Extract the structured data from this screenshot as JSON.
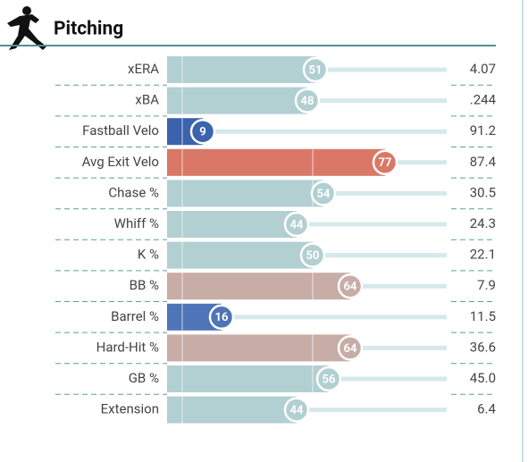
{
  "chart_data": {
    "type": "percentile-bar",
    "title": "Pitching",
    "categories": [
      "xERA",
      "xBA",
      "Fastball Velo",
      "Avg Exit Velo",
      "Chase %",
      "Whiff %",
      "K %",
      "BB %",
      "Barrel %",
      "Hard-Hit %",
      "GB %",
      "Extension"
    ],
    "values": [
      51,
      48,
      9,
      77,
      54,
      44,
      50,
      64,
      16,
      64,
      56,
      44
    ],
    "colors": [
      "#b2cfd2",
      "#b2cfd2",
      "#3b63ad",
      "#d97867",
      "#b2cfd2",
      "#b2cfd2",
      "#b2cfd2",
      "#c8aca6",
      "#4f74b7",
      "#c8aca6",
      "#b2cfd2",
      "#b2cfd2"
    ],
    "stats": [
      "4.07",
      ".244",
      "91.2",
      "87.4",
      "30.5",
      "24.3",
      "22.1",
      "7.9",
      "11.5",
      "36.6",
      "45.0",
      "6.4"
    ],
    "xlim": [
      0,
      100
    ]
  }
}
